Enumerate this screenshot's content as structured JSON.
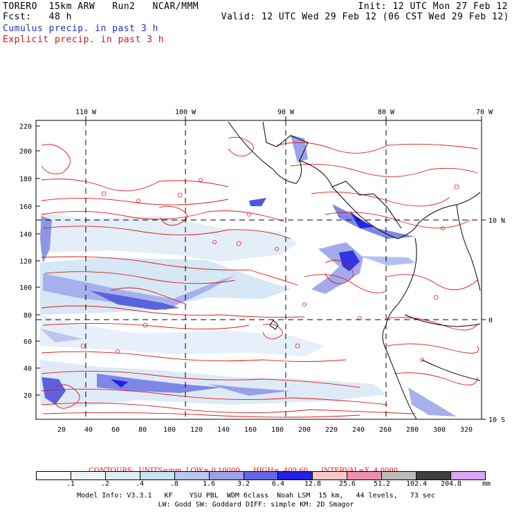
{
  "header": {
    "model": "TORERO  15km ARW   Run2   NCAR/MMM",
    "fcst": "Fcst:   48 h",
    "init": "Init: 12 UTC Mon 27 Feb 12",
    "valid": "Valid: 12 UTC Wed 29 Feb 12 (06 CST Wed 29 Feb 12)",
    "legend_cumulus": "Cumulus precip. in past 3 h",
    "legend_explicit": "Explicit precip. in past 3 h"
  },
  "map": {
    "top_labels": [
      "110 W",
      "100 W",
      "90 W",
      "80 W",
      "70 W"
    ],
    "right_labels": [
      "10 N",
      "0",
      "10 S"
    ],
    "y_ticks": [
      "220",
      "200",
      "180",
      "160",
      "140",
      "120",
      "100",
      "80",
      "60",
      "40",
      "20"
    ],
    "x_ticks": [
      "20",
      "40",
      "60",
      "80",
      "100",
      "120",
      "140",
      "160",
      "180",
      "200",
      "220",
      "240",
      "260",
      "280",
      "300",
      "320"
    ]
  },
  "contours": {
    "units": "CONTOURS:  UNITS=mm  LOW= 0.10000",
    "high": "HIGH=  409.60",
    "interval": "INTERVAL=X  4.0000"
  },
  "colorbar": {
    "labels": [
      ".1",
      ".2",
      ".4",
      ".8",
      "1.6",
      "3.2",
      "6.4",
      "12.8",
      "25.6",
      "51.2",
      "102.4",
      "204.8"
    ],
    "unit": "mm",
    "colors": [
      "#ffffff",
      "#eef3fb",
      "#dcecf7",
      "#c7e2f0",
      "#b8c8ee",
      "#9aa2e8",
      "#6266e4",
      "#1e22e6",
      "#f6c8c8",
      "#ef8fb0",
      "#bcbcbc",
      "#404040",
      "#d8a6f2"
    ]
  },
  "footer": {
    "line1": "Model Info: V3.3.1   KF    YSU PBL  WDM 6class  Noah LSM  15 km,   44 levels,   73 sec",
    "line2": "LW: Godd SW: Goddard DIFF: simple KM: 2D Smagor"
  }
}
